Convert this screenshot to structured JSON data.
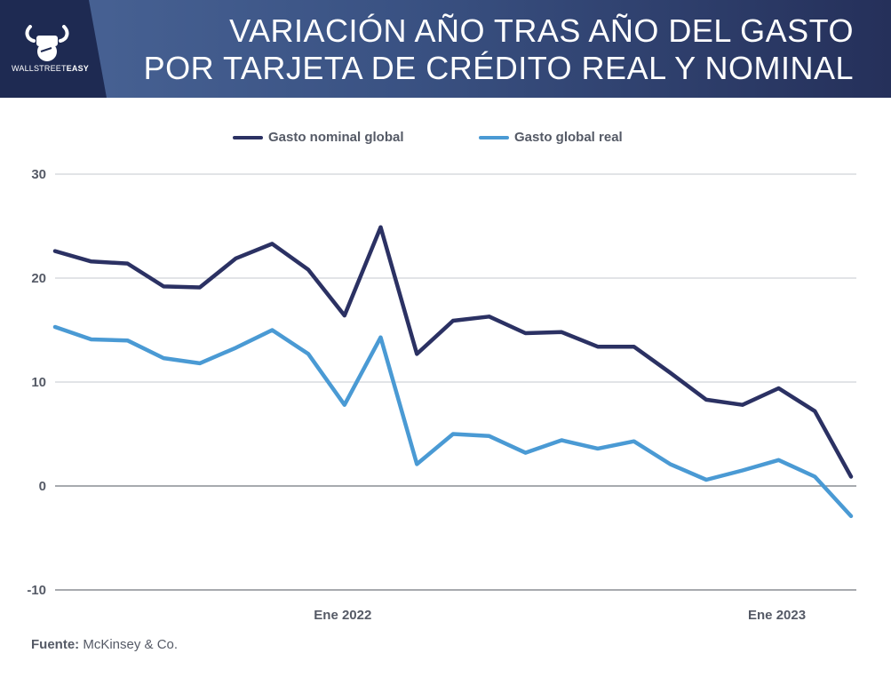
{
  "header": {
    "brand": {
      "prefix": "WALLSTREET",
      "suffix": "EASY"
    },
    "title_line1": "VARIACIÓN AÑO TRAS AÑO DEL GASTO",
    "title_line2": "POR TARJETA DE CRÉDITO REAL Y NOMINAL"
  },
  "source": {
    "label": "Fuente:",
    "value": "McKinsey & Co."
  },
  "colors": {
    "nominal": "#2b3163",
    "real": "#4a9ad4",
    "grid": "#c4c8cf",
    "baseline": "#8a8d93"
  },
  "chart_data": {
    "type": "line",
    "title": "VARIACIÓN AÑO TRAS AÑO DEL GASTO POR TARJETA DE CRÉDITO REAL Y NOMINAL",
    "xlabel": "",
    "ylabel": "",
    "ylim": [
      -10,
      30
    ],
    "yticks": [
      30,
      20,
      10,
      0,
      -10
    ],
    "x_tick_labels": [
      {
        "index": 8,
        "label": "Ene 2022"
      },
      {
        "index": 20,
        "label": "Ene 2023"
      }
    ],
    "grid": true,
    "legend_position": "top",
    "x": [
      0,
      1,
      2,
      3,
      4,
      5,
      6,
      7,
      8,
      9,
      10,
      11,
      12,
      13,
      14,
      15,
      16,
      17,
      18,
      19,
      20,
      21,
      22
    ],
    "series": [
      {
        "name": "Gasto nominal global",
        "color": "#2b3163",
        "values": [
          22.6,
          21.6,
          21.4,
          19.2,
          19.1,
          21.9,
          23.3,
          20.8,
          16.4,
          24.9,
          12.7,
          15.9,
          16.3,
          14.7,
          14.8,
          13.4,
          13.4,
          10.9,
          8.3,
          7.8,
          9.4,
          7.2,
          0.9
        ]
      },
      {
        "name": "Gasto global real",
        "color": "#4a9ad4",
        "values": [
          15.3,
          14.1,
          14.0,
          12.3,
          11.8,
          13.3,
          15.0,
          12.7,
          7.8,
          14.3,
          2.1,
          5.0,
          4.8,
          3.2,
          4.4,
          3.6,
          4.3,
          2.1,
          0.6,
          1.5,
          2.5,
          0.9,
          -2.9
        ]
      }
    ]
  }
}
